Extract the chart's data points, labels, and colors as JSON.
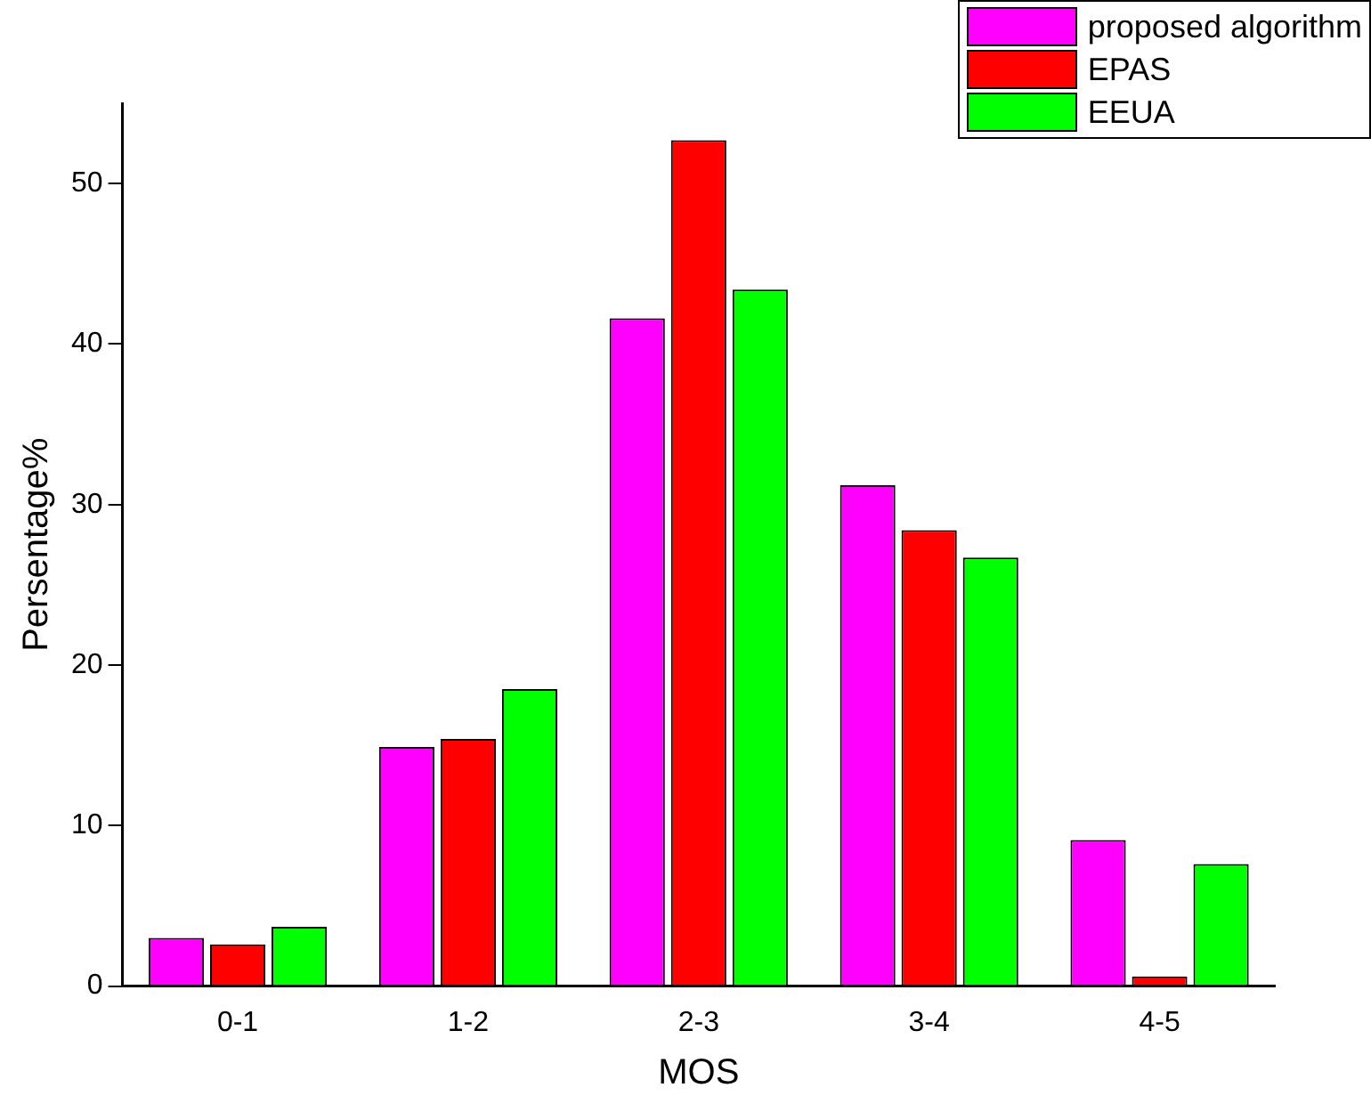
{
  "chart_data": {
    "type": "bar",
    "xlabel": "MOS",
    "ylabel": "Persentage%",
    "categories": [
      "0-1",
      "1-2",
      "2-3",
      "3-4",
      "4-5"
    ],
    "series": [
      {
        "name": "proposed algorithm",
        "color": "#ff00ff",
        "values": [
          3.0,
          14.9,
          41.6,
          31.2,
          9.1
        ]
      },
      {
        "name": "EPAS",
        "color": "#ff0000",
        "values": [
          2.6,
          15.4,
          52.7,
          28.4,
          0.6
        ]
      },
      {
        "name": "EEUA",
        "color": "#00ff00",
        "values": [
          3.7,
          18.5,
          43.4,
          26.7,
          7.6
        ]
      }
    ],
    "ylim": [
      0,
      55
    ],
    "yticks": [
      0,
      10,
      20,
      30,
      40,
      50
    ],
    "grid": false,
    "legend": "top right"
  }
}
